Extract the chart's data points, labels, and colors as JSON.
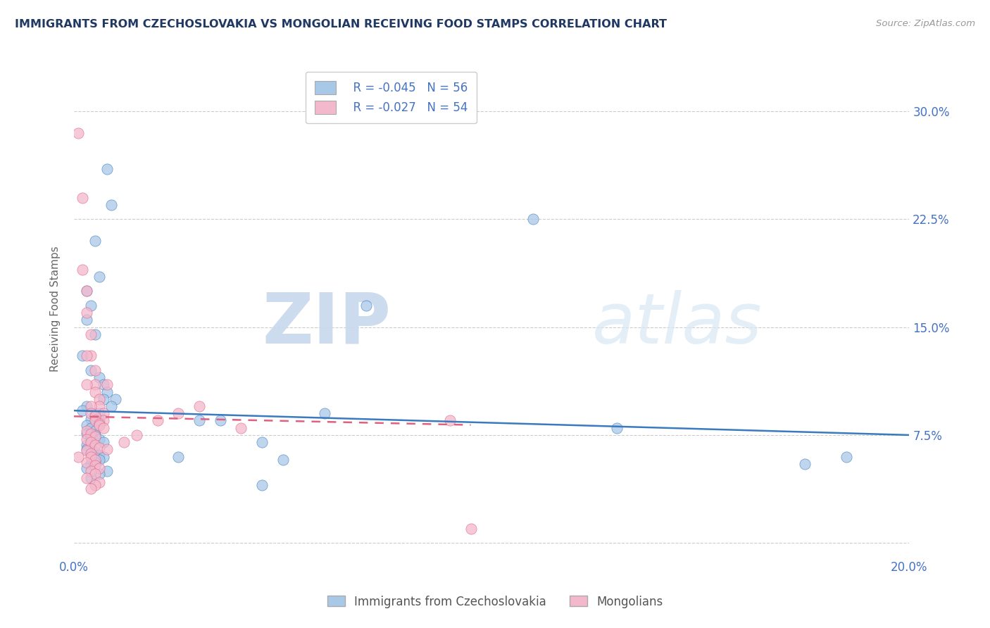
{
  "title": "IMMIGRANTS FROM CZECHOSLOVAKIA VS MONGOLIAN RECEIVING FOOD STAMPS CORRELATION CHART",
  "source": "Source: ZipAtlas.com",
  "ylabel": "Receiving Food Stamps",
  "xlim": [
    0.0,
    0.2
  ],
  "ylim": [
    -0.01,
    0.335
  ],
  "yticks": [
    0.0,
    0.075,
    0.15,
    0.225,
    0.3
  ],
  "ytick_labels": [
    "",
    "7.5%",
    "15.0%",
    "22.5%",
    "30.0%"
  ],
  "xticks": [
    0.0,
    0.05,
    0.1,
    0.15,
    0.2
  ],
  "xtick_labels": [
    "0.0%",
    "",
    "",
    "",
    "20.0%"
  ],
  "blue_color": "#a8c8e8",
  "pink_color": "#f4b8cc",
  "blue_line_color": "#3a7abf",
  "pink_line_color": "#e06080",
  "axis_label_color": "#4472c4",
  "title_color": "#1f3864",
  "legend_R1": "R = -0.045",
  "legend_N1": "N = 56",
  "legend_R2": "R = -0.027",
  "legend_N2": "N = 54",
  "legend_label1": "Immigrants from Czechoslovakia",
  "legend_label2": "Mongolians",
  "blue_trend_x0": 0.0,
  "blue_trend_y0": 0.092,
  "blue_trend_x1": 0.2,
  "blue_trend_y1": 0.075,
  "pink_trend_x0": 0.0,
  "pink_trend_y0": 0.088,
  "pink_trend_x1": 0.095,
  "pink_trend_y1": 0.082,
  "blue_scatter_x": [
    0.008,
    0.009,
    0.005,
    0.006,
    0.003,
    0.004,
    0.003,
    0.005,
    0.002,
    0.004,
    0.006,
    0.007,
    0.008,
    0.01,
    0.007,
    0.009,
    0.003,
    0.002,
    0.005,
    0.006,
    0.005,
    0.004,
    0.006,
    0.003,
    0.004,
    0.005,
    0.003,
    0.005,
    0.004,
    0.006,
    0.007,
    0.003,
    0.004,
    0.003,
    0.005,
    0.006,
    0.007,
    0.006,
    0.005,
    0.004,
    0.003,
    0.008,
    0.006,
    0.004,
    0.03,
    0.045,
    0.025,
    0.035,
    0.05,
    0.06,
    0.07,
    0.11,
    0.13,
    0.175,
    0.045,
    0.185
  ],
  "blue_scatter_y": [
    0.26,
    0.235,
    0.21,
    0.185,
    0.175,
    0.165,
    0.155,
    0.145,
    0.13,
    0.12,
    0.115,
    0.11,
    0.105,
    0.1,
    0.1,
    0.095,
    0.095,
    0.092,
    0.09,
    0.09,
    0.088,
    0.086,
    0.085,
    0.082,
    0.08,
    0.078,
    0.076,
    0.075,
    0.073,
    0.072,
    0.07,
    0.068,
    0.066,
    0.065,
    0.063,
    0.061,
    0.06,
    0.058,
    0.056,
    0.055,
    0.052,
    0.05,
    0.048,
    0.045,
    0.085,
    0.07,
    0.06,
    0.085,
    0.058,
    0.09,
    0.165,
    0.225,
    0.08,
    0.055,
    0.04,
    0.06
  ],
  "pink_scatter_x": [
    0.001,
    0.002,
    0.002,
    0.003,
    0.003,
    0.004,
    0.004,
    0.005,
    0.005,
    0.005,
    0.006,
    0.006,
    0.007,
    0.007,
    0.008,
    0.003,
    0.003,
    0.004,
    0.004,
    0.005,
    0.005,
    0.006,
    0.006,
    0.007,
    0.003,
    0.004,
    0.005,
    0.003,
    0.004,
    0.005,
    0.006,
    0.003,
    0.004,
    0.004,
    0.005,
    0.003,
    0.005,
    0.006,
    0.004,
    0.005,
    0.003,
    0.006,
    0.005,
    0.004,
    0.02,
    0.03,
    0.04,
    0.012,
    0.008,
    0.015,
    0.025,
    0.09,
    0.095,
    0.001
  ],
  "pink_scatter_y": [
    0.285,
    0.24,
    0.19,
    0.175,
    0.16,
    0.145,
    0.13,
    0.12,
    0.11,
    0.105,
    0.1,
    0.095,
    0.09,
    0.085,
    0.11,
    0.13,
    0.11,
    0.095,
    0.09,
    0.088,
    0.085,
    0.083,
    0.082,
    0.08,
    0.078,
    0.076,
    0.074,
    0.072,
    0.07,
    0.068,
    0.066,
    0.064,
    0.062,
    0.06,
    0.058,
    0.056,
    0.054,
    0.052,
    0.05,
    0.048,
    0.045,
    0.042,
    0.04,
    0.038,
    0.085,
    0.095,
    0.08,
    0.07,
    0.065,
    0.075,
    0.09,
    0.085,
    0.01,
    0.06
  ]
}
